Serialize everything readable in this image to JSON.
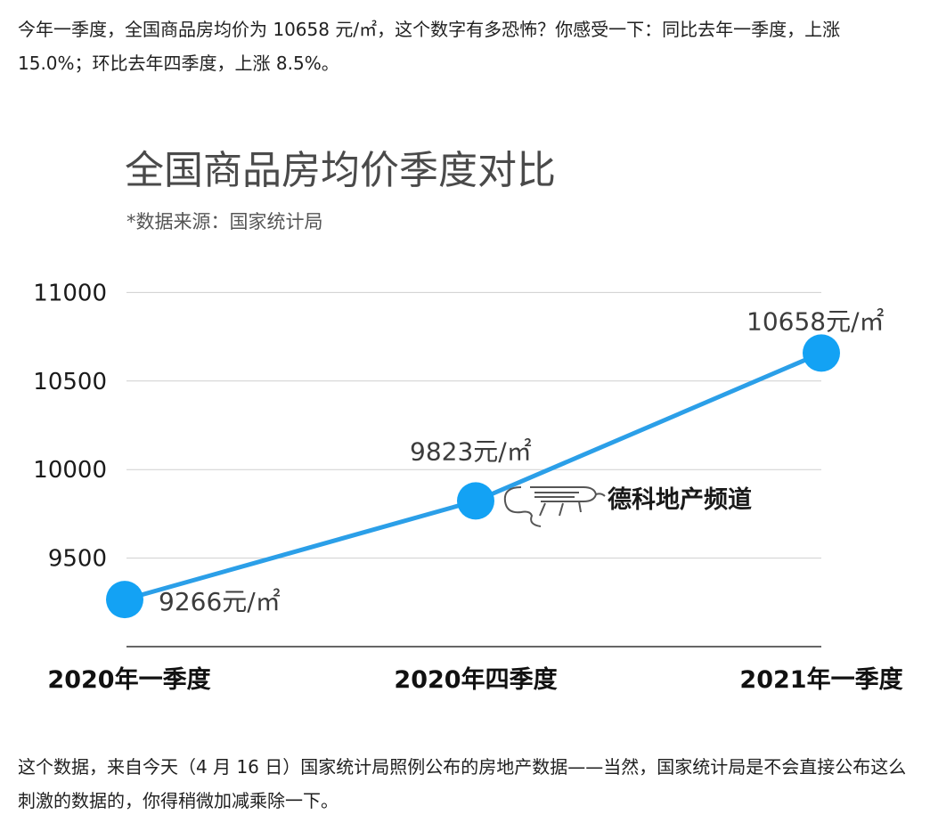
{
  "article": {
    "intro": "今年一季度，全国商品房均价为 10658 元/㎡，这个数字有多恐怖？你感受一下：同比去年一季度，上涨 15.0%；环比去年四季度，上涨 8.5%。",
    "outro": "这个数据，来自今天（4 月 16 日）国家统计局照例公布的房地产数据——当然，国家统计局是不会直接公布这么刺激的数据的，你得稍微加减乘除一下。"
  },
  "chart_data": {
    "type": "line",
    "title": "全国商品房均价季度对比",
    "subtitle": "*数据来源：国家统计局",
    "categories": [
      "2020年一季度",
      "2020年四季度",
      "2021年一季度"
    ],
    "values": [
      9266,
      9823,
      10658
    ],
    "data_labels": [
      "9266元/㎡",
      "9823元/㎡",
      "10658元/㎡"
    ],
    "ylim": [
      9000,
      11000
    ],
    "yticks": [
      9500,
      10000,
      10500,
      11000
    ],
    "grid": true,
    "line_color": "#2b9fe8",
    "marker_color": "#13a2f4"
  },
  "watermark": {
    "text": "德科地产频道"
  }
}
